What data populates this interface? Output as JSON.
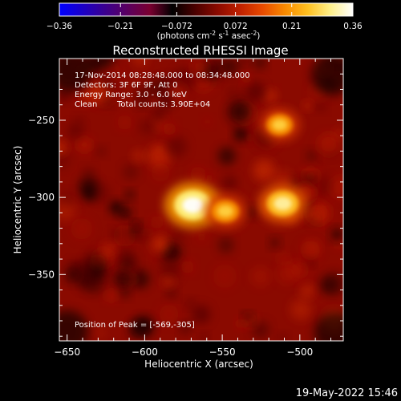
{
  "colorbar": {
    "ticks": [
      "-0.36",
      "-0.21",
      "-0.072",
      "0.072",
      "0.21",
      "0.36"
    ],
    "unit_parts": [
      "(photons cm",
      "-2",
      " s",
      "-1",
      " asec",
      "-2",
      ")"
    ]
  },
  "title": "Reconstructed RHESSI Image",
  "info": {
    "time": "17-Nov-2014 08:28:48.000 to 08:34:48.000",
    "detectors": "Detectors: 3F 6F 9F, Att 0",
    "energy": "Energy Range: 3.0 - 6.0 keV",
    "clean": "Clean",
    "counts": "Total counts: 3.90E+04",
    "peak": "Position of Peak = [-569,-305]"
  },
  "xlabel": "Heliocentric X (arcsec)",
  "ylabel": "Heliocentric Y (arcsec)",
  "timestamp": "19-May-2022 15:46",
  "colors": {
    "colormap": [
      "#0000ff",
      "#1a00c8",
      "#3a0090",
      "#5a0060",
      "#7a0030",
      "#000000",
      "#4a0000",
      "#8a0a00",
      "#c02000",
      "#e84a00",
      "#f88a00",
      "#ffc020",
      "#fff08a",
      "#ffffff"
    ],
    "background": "#000000",
    "foreground": "#ffffff"
  },
  "chart_data": {
    "type": "heatmap",
    "title": "Reconstructed RHESSI Image",
    "xlabel": "Heliocentric X (arcsec)",
    "ylabel": "Heliocentric Y (arcsec)",
    "xlim": [
      -655,
      -472
    ],
    "ylim": [
      -393,
      -210
    ],
    "x_ticks": [
      -650,
      -600,
      -550,
      -500
    ],
    "y_ticks": [
      -250,
      -300,
      -350
    ],
    "x_tick_labels": [
      "−650",
      "−600",
      "−550",
      "−500"
    ],
    "y_tick_labels": [
      "−250",
      "−300",
      "−350"
    ],
    "colorbar_range": [
      -0.36,
      0.36
    ],
    "peak": [
      -569,
      -305
    ],
    "sources": [
      {
        "x": -569,
        "y": -305,
        "peak": 0.36
      },
      {
        "x": -548,
        "y": -309,
        "peak": 0.22
      },
      {
        "x": -511,
        "y": -304,
        "peak": 0.28
      },
      {
        "x": -513,
        "y": -253,
        "peak": 0.2
      }
    ]
  }
}
